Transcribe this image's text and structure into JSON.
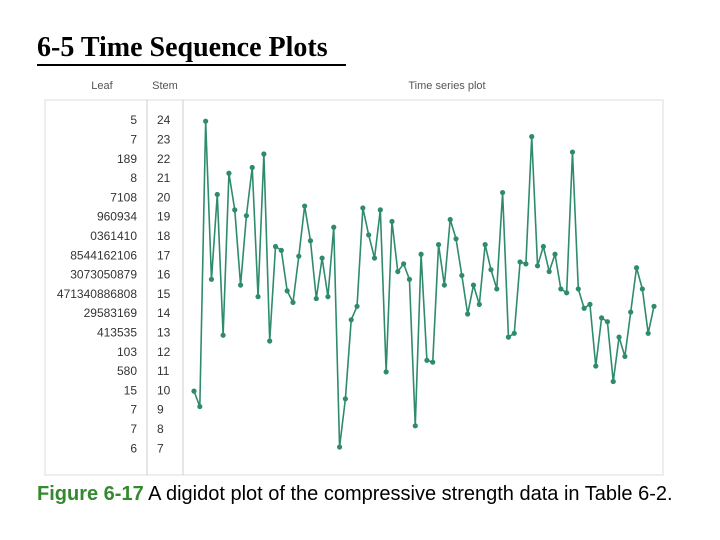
{
  "title": "6-5 Time Sequence Plots",
  "figure": {
    "leaf_header": "Leaf",
    "stem_header": "Stem",
    "leaves": [
      "5",
      "7",
      "189",
      "8",
      "7108",
      "960934",
      "0361410",
      "8544162106",
      "3073050879",
      "471340886808",
      "29583169",
      "413535",
      "103",
      "580",
      "15",
      "7",
      "7",
      "6"
    ],
    "stems": [
      24,
      23,
      22,
      21,
      20,
      19,
      18,
      17,
      16,
      15,
      14,
      13,
      12,
      11,
      10,
      9,
      8,
      7
    ]
  },
  "chart_data": {
    "type": "line",
    "title": "Time series plot",
    "values": [
      105,
      97,
      245,
      163,
      207,
      134,
      218,
      199,
      160,
      196,
      221,
      154,
      228,
      131,
      180,
      178,
      157,
      151,
      175,
      201,
      183,
      153,
      174,
      154,
      190,
      76,
      101,
      142,
      149,
      200,
      186,
      174,
      199,
      115,
      193,
      167,
      171,
      163,
      87,
      176,
      121,
      120,
      181,
      160,
      194,
      184,
      165,
      145,
      160,
      150,
      181,
      168,
      158,
      208,
      133,
      135,
      172,
      171,
      237,
      170,
      180,
      167,
      176,
      158,
      156,
      229,
      158,
      148,
      150,
      118,
      143,
      141,
      110,
      133,
      123,
      146,
      169,
      158,
      135,
      149
    ],
    "color": "#2e8b6e",
    "ylim": [
      61.5,
      256
    ]
  },
  "caption": {
    "label": "Figure 6-17",
    "text": " A digidot plot of the compressive strength data in Table 6-2."
  }
}
